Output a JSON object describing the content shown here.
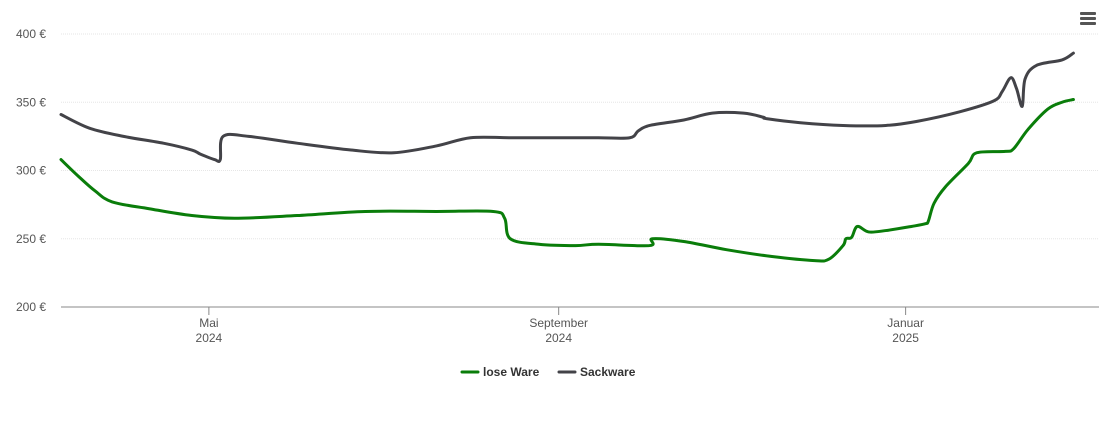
{
  "menu": {
    "icon": "hamburger-menu-icon"
  },
  "chart_data": {
    "type": "line",
    "x_type": "date",
    "x_range": [
      "2024-03-10",
      "2025-03-10"
    ],
    "ylim": [
      200,
      400
    ],
    "y_ticks": [
      {
        "value": 200,
        "label": "200 €"
      },
      {
        "value": 250,
        "label": "250 €"
      },
      {
        "value": 300,
        "label": "300 €"
      },
      {
        "value": 350,
        "label": "350 €"
      },
      {
        "value": 400,
        "label": "400 €"
      }
    ],
    "x_ticks": [
      {
        "date": "2024-05-01",
        "month": "Mai",
        "year": "2024"
      },
      {
        "date": "2024-09-01",
        "month": "September",
        "year": "2024"
      },
      {
        "date": "2025-01-01",
        "month": "Januar",
        "year": "2025"
      }
    ],
    "grid": true,
    "legend_position": "bottom-center",
    "series": [
      {
        "name": "lose Ware",
        "color": "#0a7d0a",
        "points": [
          [
            "2024-03-10",
            308
          ],
          [
            "2024-03-16",
            296
          ],
          [
            "2024-03-22",
            285
          ],
          [
            "2024-03-28",
            277
          ],
          [
            "2024-04-10",
            272
          ],
          [
            "2024-04-25",
            267
          ],
          [
            "2024-05-10",
            265
          ],
          [
            "2024-06-01",
            267
          ],
          [
            "2024-06-25",
            270
          ],
          [
            "2024-07-20",
            270
          ],
          [
            "2024-08-09",
            270
          ],
          [
            "2024-08-13",
            265
          ],
          [
            "2024-08-15",
            250
          ],
          [
            "2024-08-25",
            246
          ],
          [
            "2024-09-07",
            245
          ],
          [
            "2024-09-15",
            246
          ],
          [
            "2024-10-03",
            245
          ],
          [
            "2024-10-04",
            250
          ],
          [
            "2024-10-15",
            248
          ],
          [
            "2024-10-30",
            242
          ],
          [
            "2024-11-15",
            237
          ],
          [
            "2024-11-30",
            234
          ],
          [
            "2024-12-05",
            235
          ],
          [
            "2024-12-10",
            245
          ],
          [
            "2024-12-11",
            250
          ],
          [
            "2024-12-13",
            251
          ],
          [
            "2024-12-15",
            259
          ],
          [
            "2024-12-19",
            255
          ],
          [
            "2024-12-25",
            256
          ],
          [
            "2025-01-03",
            259
          ],
          [
            "2025-01-08",
            261
          ],
          [
            "2025-01-09",
            263
          ],
          [
            "2025-01-11",
            276
          ],
          [
            "2025-01-15",
            288
          ],
          [
            "2025-01-23",
            305
          ],
          [
            "2025-01-26",
            313
          ],
          [
            "2025-02-05",
            314
          ],
          [
            "2025-02-08",
            316
          ],
          [
            "2025-02-13",
            330
          ],
          [
            "2025-02-20",
            345
          ],
          [
            "2025-02-25",
            350
          ],
          [
            "2025-03-01",
            352
          ]
        ]
      },
      {
        "name": "Sackware",
        "color": "#434348",
        "points": [
          [
            "2024-03-10",
            341
          ],
          [
            "2024-03-20",
            331
          ],
          [
            "2024-04-01",
            325
          ],
          [
            "2024-04-15",
            320
          ],
          [
            "2024-04-25",
            315
          ],
          [
            "2024-04-28",
            312
          ],
          [
            "2024-05-03",
            308
          ],
          [
            "2024-05-05",
            308
          ],
          [
            "2024-05-06",
            325
          ],
          [
            "2024-05-15",
            325
          ],
          [
            "2024-06-01",
            320
          ],
          [
            "2024-06-20",
            315
          ],
          [
            "2024-07-05",
            313
          ],
          [
            "2024-07-20",
            318
          ],
          [
            "2024-08-01",
            324
          ],
          [
            "2024-08-15",
            324
          ],
          [
            "2024-09-01",
            324
          ],
          [
            "2024-09-15",
            324
          ],
          [
            "2024-09-26",
            324
          ],
          [
            "2024-09-29",
            329
          ],
          [
            "2024-10-03",
            333
          ],
          [
            "2024-10-15",
            337
          ],
          [
            "2024-10-25",
            342
          ],
          [
            "2024-11-05",
            342
          ],
          [
            "2024-11-12",
            339
          ],
          [
            "2024-11-13",
            338
          ],
          [
            "2024-11-25",
            335
          ],
          [
            "2024-12-10",
            333
          ],
          [
            "2024-12-25",
            333
          ],
          [
            "2025-01-05",
            336
          ],
          [
            "2025-01-20",
            343
          ],
          [
            "2025-02-01",
            351
          ],
          [
            "2025-02-04",
            358
          ],
          [
            "2025-02-07",
            368
          ],
          [
            "2025-02-09",
            360
          ],
          [
            "2025-02-11",
            347
          ],
          [
            "2025-02-12",
            367
          ],
          [
            "2025-02-16",
            377
          ],
          [
            "2025-02-25",
            381
          ],
          [
            "2025-03-01",
            386
          ]
        ]
      }
    ]
  }
}
